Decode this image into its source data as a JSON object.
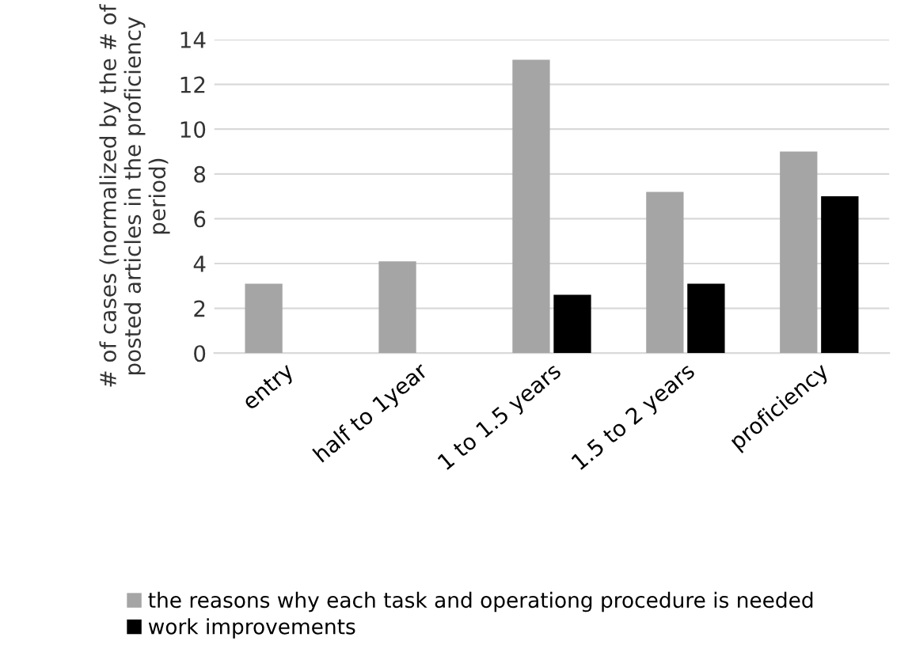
{
  "chart_data": {
    "type": "bar",
    "ylabel": "# of cases (normalized by the # of\nposted articles in the proficiency\nperiod)",
    "categories": [
      "entry",
      "half to 1year",
      "1 to 1.5 years",
      "1.5 to 2 years",
      "proficiency"
    ],
    "series": [
      {
        "name": "the reasons why each task and operationg procedure is needed",
        "color": "#a5a5a5",
        "values": [
          3.1,
          4.1,
          13.1,
          7.2,
          9.0
        ]
      },
      {
        "name": "work improvements",
        "color": "#000000",
        "values": [
          null,
          null,
          2.6,
          3.1,
          7.0
        ]
      }
    ],
    "ylim": [
      0,
      14
    ],
    "yticks": [
      0,
      2,
      4,
      6,
      8,
      10,
      12,
      14
    ],
    "grid": "y",
    "legend": "bottom"
  }
}
